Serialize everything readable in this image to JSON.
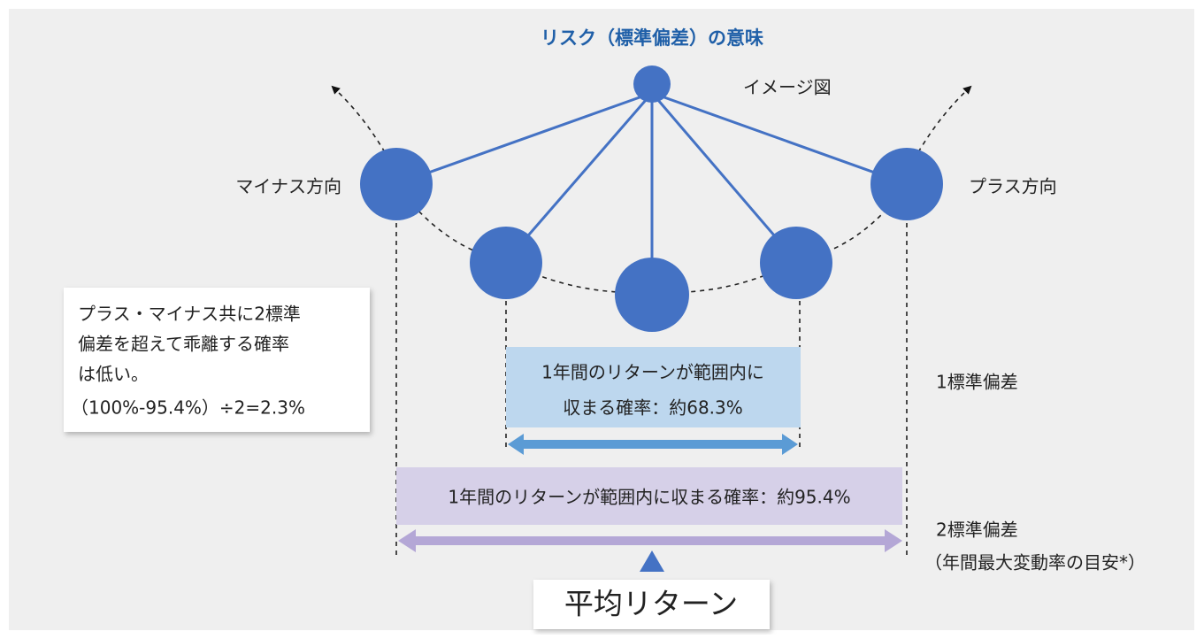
{
  "title": "リスク（標準偏差）の意味",
  "image_label": "イメージ図",
  "left_label": "マイナス方向",
  "right_label": "プラス方向",
  "note": {
    "lines": [
      "プラス・マイナス共に2標準",
      "偏差を超えて乖離する確率",
      "は低い。",
      "（100%-95.4%）÷2=2.3%"
    ]
  },
  "one_sigma": {
    "box_lines": [
      "1年間のリターンが範囲内に",
      "収まる確率：約68.3%"
    ],
    "label": "1標準偏差"
  },
  "two_sigma": {
    "box_text": "1年間のリターンが範囲内に収まる確率：約95.4%",
    "label_lines": [
      "2標準偏差",
      "（年間最大変動率の目安*）"
    ]
  },
  "mean_label": "平均リターン"
}
